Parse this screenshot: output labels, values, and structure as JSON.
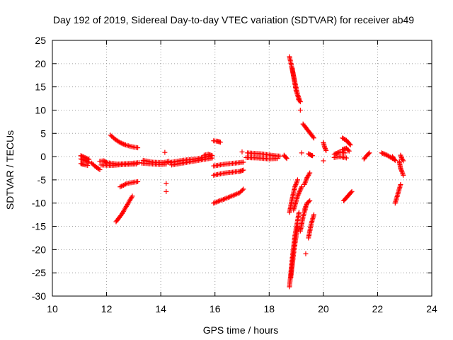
{
  "chart_data": {
    "type": "scatter",
    "title": "Day 192 of 2019, Sidereal Day-to-day VTEC variation (SDTVAR) for receiver ab49",
    "xlabel": "GPS time / hours",
    "ylabel": "SDTVAR / TECUs",
    "xlim": [
      10,
      24
    ],
    "ylim": [
      -30,
      25
    ],
    "xticks": [
      10,
      12,
      14,
      16,
      18,
      20,
      22,
      24
    ],
    "yticks": [
      -30,
      -25,
      -20,
      -15,
      -10,
      -5,
      0,
      5,
      10,
      15,
      20,
      25
    ],
    "grid": true,
    "marker": "+",
    "color": "#ff0000",
    "tracks": [
      [
        [
          11.05,
          -0.5
        ],
        [
          11.2,
          -0.8
        ],
        [
          11.35,
          -1.2
        ]
      ],
      [
        [
          11.05,
          0.2
        ],
        [
          11.2,
          -0.2
        ],
        [
          11.35,
          -0.6
        ]
      ],
      [
        [
          11.05,
          -1.5
        ],
        [
          11.15,
          -1.7
        ],
        [
          11.3,
          -1.9
        ]
      ],
      [
        [
          11.45,
          -1.4
        ],
        [
          11.6,
          -2.2
        ],
        [
          11.75,
          -2.8
        ]
      ],
      [
        [
          11.75,
          -1.0
        ],
        [
          11.9,
          -0.9
        ],
        [
          12.0,
          -1.3
        ]
      ],
      [
        [
          12.0,
          -1.3
        ],
        [
          12.4,
          -1.6
        ],
        [
          12.8,
          -1.5
        ],
        [
          13.2,
          -1.3
        ]
      ],
      [
        [
          11.8,
          -1.8
        ],
        [
          12.2,
          -1.9
        ],
        [
          12.6,
          -1.7
        ],
        [
          13.1,
          -1.6
        ]
      ],
      [
        [
          12.15,
          4.6
        ],
        [
          12.3,
          3.8
        ],
        [
          12.5,
          3.0
        ],
        [
          12.7,
          2.5
        ],
        [
          12.95,
          2.1
        ],
        [
          13.15,
          1.9
        ]
      ],
      [
        [
          12.35,
          -14.0
        ],
        [
          12.55,
          -12.5
        ],
        [
          12.75,
          -10.5
        ],
        [
          12.95,
          -8.5
        ]
      ],
      [
        [
          12.5,
          -6.5
        ],
        [
          12.75,
          -5.8
        ],
        [
          13.0,
          -5.5
        ],
        [
          13.15,
          -5.4
        ]
      ],
      [
        [
          13.35,
          -0.8
        ],
        [
          13.7,
          -1.2
        ],
        [
          14.1,
          -1.3
        ],
        [
          14.3,
          -1.0
        ]
      ],
      [
        [
          13.3,
          -1.4
        ],
        [
          13.7,
          -1.6
        ],
        [
          14.0,
          -1.7
        ],
        [
          14.2,
          -1.6
        ]
      ],
      [
        [
          14.3,
          -1.3
        ],
        [
          14.8,
          -0.8
        ],
        [
          15.3,
          -0.5
        ],
        [
          15.8,
          0.1
        ]
      ],
      [
        [
          14.4,
          -1.8
        ],
        [
          14.9,
          -1.3
        ],
        [
          15.4,
          -0.8
        ],
        [
          15.9,
          -0.3
        ]
      ],
      [
        [
          15.6,
          0.3
        ],
        [
          15.75,
          0.5
        ],
        [
          15.9,
          0.2
        ]
      ],
      [
        [
          15.95,
          3.4
        ],
        [
          16.1,
          3.3
        ],
        [
          16.2,
          3.1
        ]
      ],
      [
        [
          15.95,
          -10.0
        ],
        [
          16.4,
          -9.0
        ],
        [
          16.9,
          -7.8
        ],
        [
          17.05,
          -7.0
        ]
      ],
      [
        [
          15.95,
          -4.0
        ],
        [
          16.4,
          -3.5
        ],
        [
          16.9,
          -3.2
        ],
        [
          17.05,
          -2.9
        ]
      ],
      [
        [
          15.95,
          -2.0
        ],
        [
          16.4,
          -1.6
        ],
        [
          16.9,
          -1.3
        ],
        [
          17.05,
          -1.2
        ]
      ],
      [
        [
          17.2,
          0.8
        ],
        [
          17.7,
          0.6
        ],
        [
          18.2,
          0.2
        ],
        [
          18.4,
          0.1
        ]
      ],
      [
        [
          17.15,
          -0.2
        ],
        [
          17.6,
          -0.3
        ],
        [
          18.0,
          -0.5
        ],
        [
          18.3,
          -0.4
        ]
      ],
      [
        [
          18.55,
          0.3
        ],
        [
          18.6,
          -0.1
        ],
        [
          18.65,
          -0.4
        ]
      ],
      [
        [
          18.75,
          21.5
        ],
        [
          18.95,
          16.0
        ],
        [
          19.1,
          12.0
        ]
      ],
      [
        [
          18.85,
          19.0
        ],
        [
          19.0,
          14.0
        ],
        [
          19.15,
          11.8
        ]
      ],
      [
        [
          19.25,
          7.0
        ],
        [
          19.45,
          5.5
        ],
        [
          19.65,
          4.0
        ]
      ],
      [
        [
          18.75,
          -28.0
        ],
        [
          18.85,
          -22.0
        ],
        [
          18.95,
          -17.0
        ],
        [
          19.1,
          -12.0
        ]
      ],
      [
        [
          18.8,
          -26.0
        ],
        [
          18.92,
          -20.0
        ],
        [
          19.05,
          -15.0
        ]
      ],
      [
        [
          18.75,
          -12.0
        ],
        [
          18.85,
          -9.0
        ],
        [
          18.95,
          -6.5
        ],
        [
          19.05,
          -5.0
        ]
      ],
      [
        [
          18.9,
          -11.5
        ],
        [
          19.05,
          -8.5
        ],
        [
          19.2,
          -6.5
        ]
      ],
      [
        [
          19.15,
          -16.0
        ],
        [
          19.25,
          -13.0
        ],
        [
          19.35,
          -11.0
        ]
      ],
      [
        [
          19.3,
          -6.0
        ],
        [
          19.4,
          -4.5
        ],
        [
          19.5,
          -3.5
        ]
      ],
      [
        [
          19.3,
          -11.5
        ],
        [
          19.4,
          -10.0
        ],
        [
          19.5,
          -9.5
        ]
      ],
      [
        [
          19.45,
          -17.5
        ],
        [
          19.55,
          -14.5
        ],
        [
          19.65,
          -12.5
        ]
      ],
      [
        [
          19.45,
          0.6
        ],
        [
          19.55,
          0.3
        ],
        [
          19.6,
          0.2
        ]
      ],
      [
        [
          20.0,
          3.0
        ],
        [
          20.05,
          2.0
        ],
        [
          20.1,
          1.3
        ]
      ],
      [
        [
          20.4,
          0.5
        ],
        [
          20.6,
          1.0
        ],
        [
          20.8,
          0.8
        ]
      ],
      [
        [
          20.4,
          -0.2
        ],
        [
          20.6,
          0.0
        ],
        [
          20.85,
          -0.3
        ]
      ],
      [
        [
          20.7,
          1.5
        ],
        [
          20.85,
          1.8
        ],
        [
          20.95,
          1.2
        ]
      ],
      [
        [
          20.7,
          4.0
        ],
        [
          20.85,
          3.5
        ],
        [
          21.0,
          2.5
        ]
      ],
      [
        [
          20.75,
          -9.5
        ],
        [
          20.9,
          -8.5
        ],
        [
          21.05,
          -7.5
        ]
      ],
      [
        [
          21.5,
          -0.5
        ],
        [
          21.6,
          0.2
        ],
        [
          21.7,
          0.8
        ]
      ],
      [
        [
          22.15,
          0.8
        ],
        [
          22.35,
          0.3
        ],
        [
          22.55,
          -0.4
        ]
      ],
      [
        [
          22.55,
          0.0
        ],
        [
          22.6,
          -0.5
        ],
        [
          22.65,
          -0.8
        ]
      ],
      [
        [
          22.65,
          -10.0
        ],
        [
          22.75,
          -8.0
        ],
        [
          22.85,
          -6.0
        ]
      ],
      [
        [
          22.8,
          -1.0
        ],
        [
          22.85,
          -2.5
        ],
        [
          22.95,
          -4.0
        ]
      ],
      [
        [
          22.85,
          0.3
        ],
        [
          22.9,
          -0.5
        ],
        [
          22.95,
          -0.9
        ]
      ]
    ],
    "points": [
      [
        14.15,
        0.9
      ],
      [
        14.2,
        -5.8
      ],
      [
        14.2,
        -7.5
      ],
      [
        17.0,
        1.0
      ],
      [
        19.15,
        10.0
      ],
      [
        19.2,
        0.8
      ],
      [
        19.35,
        -20.9
      ],
      [
        20.0,
        -0.9
      ]
    ]
  }
}
